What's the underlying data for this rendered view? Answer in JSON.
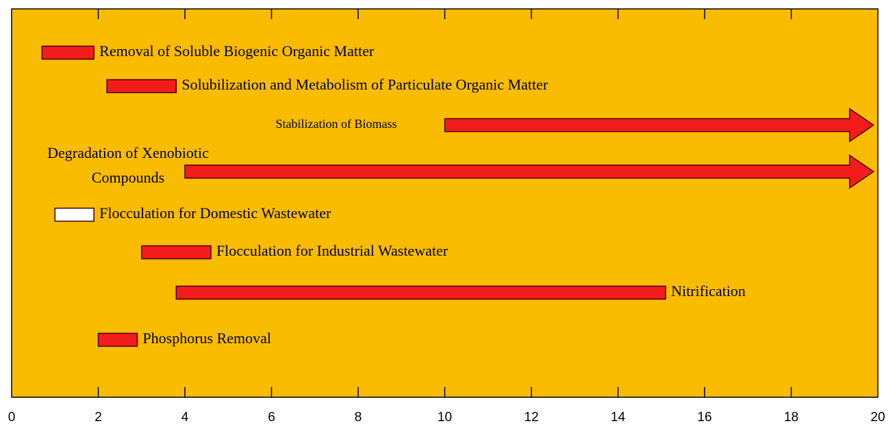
{
  "chart_data": {
    "type": "range-bar",
    "xlim": [
      0,
      20
    ],
    "xticks": [
      0,
      2,
      4,
      6,
      8,
      10,
      12,
      14,
      16,
      18,
      20
    ],
    "background": "#f9bc00",
    "tasks": [
      {
        "label": "Removal of Soluble Biogenic Organic Matter",
        "start": 0.7,
        "end": 1.9,
        "color": "#f31c1c",
        "arrow": false,
        "label_side": "right"
      },
      {
        "label": "Solubilization and Metabolism of Particulate Organic Matter",
        "start": 2.2,
        "end": 3.8,
        "color": "#f31c1c",
        "arrow": false,
        "label_side": "right"
      },
      {
        "label": "Stabilization of Biomass",
        "start": 10,
        "end": 19.9,
        "color": "#f31c1c",
        "arrow": true,
        "label_side": "left"
      },
      {
        "label": [
          "Degradation of Xenobiotic",
          "Compounds"
        ],
        "start": 4,
        "end": 19.9,
        "color": "#f31c1c",
        "arrow": true,
        "label_side": "left"
      },
      {
        "label": "Flocculation for Domestic Wastewater",
        "start": 1.0,
        "end": 1.9,
        "color": "#ffffff",
        "arrow": false,
        "label_side": "right"
      },
      {
        "label": "Flocculation for Industrial Wastewater",
        "start": 3.0,
        "end": 4.6,
        "color": "#f31c1c",
        "arrow": false,
        "label_side": "right"
      },
      {
        "label": "Nitrification",
        "start": 3.8,
        "end": 15.1,
        "color": "#f31c1c",
        "arrow": false,
        "label_side": "right"
      },
      {
        "label": "Phosphorus Removal",
        "start": 2.0,
        "end": 2.9,
        "color": "#f31c1c",
        "arrow": false,
        "label_side": "right"
      }
    ]
  }
}
